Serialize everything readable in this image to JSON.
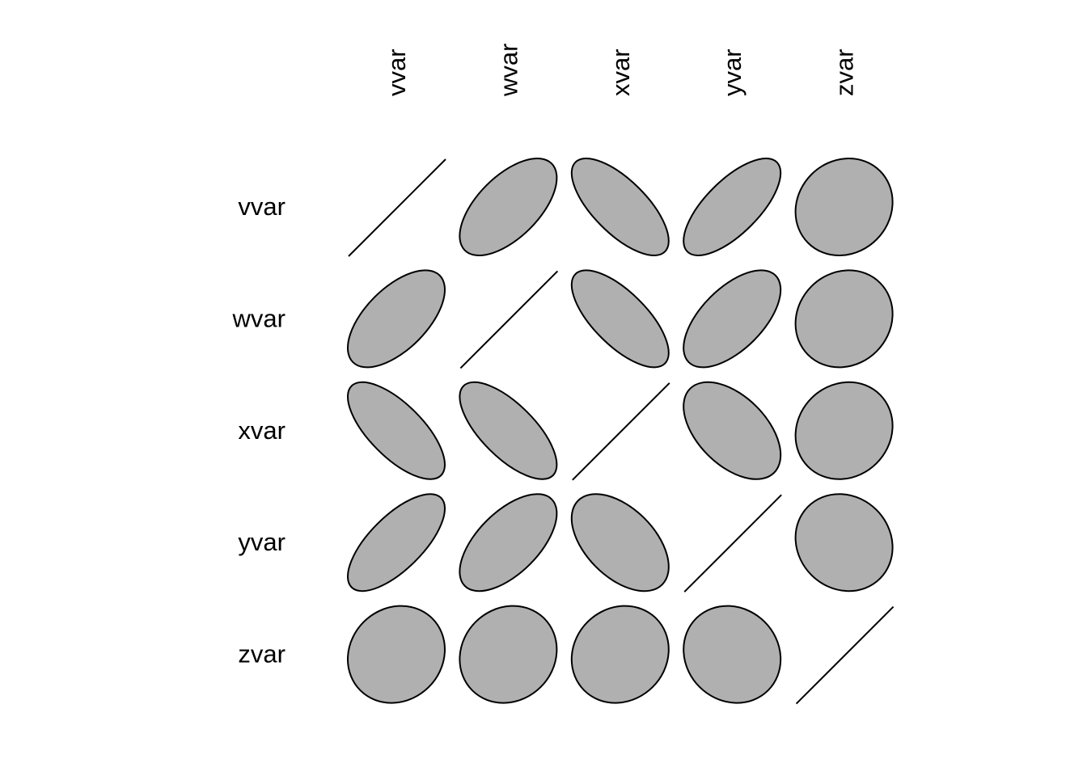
{
  "chart_data": {
    "type": "heatmap",
    "variables": [
      "vvar",
      "wvar",
      "xvar",
      "yvar",
      "zvar"
    ],
    "correlation": [
      [
        1.0,
        0.6,
        -0.7,
        0.7,
        0.1
      ],
      [
        0.6,
        1.0,
        -0.7,
        0.6,
        0.1
      ],
      [
        -0.7,
        -0.7,
        1.0,
        -0.5,
        0.1
      ],
      [
        0.7,
        0.6,
        -0.5,
        1.0,
        -0.1
      ],
      [
        0.1,
        0.1,
        0.1,
        -0.1,
        1.0
      ]
    ],
    "fill_color": "#b0b0b0",
    "stroke_color": "#000000",
    "value_range": [
      -1,
      1
    ]
  }
}
